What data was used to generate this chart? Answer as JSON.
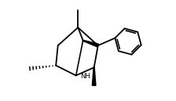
{
  "bg_color": "#ffffff",
  "line_color": "#000000",
  "lw": 1.3,
  "fig_width": 2.24,
  "fig_height": 1.29,
  "dpi": 100,
  "xlim": [
    -0.25,
    1.05
  ],
  "ylim": [
    0.05,
    1.05
  ]
}
